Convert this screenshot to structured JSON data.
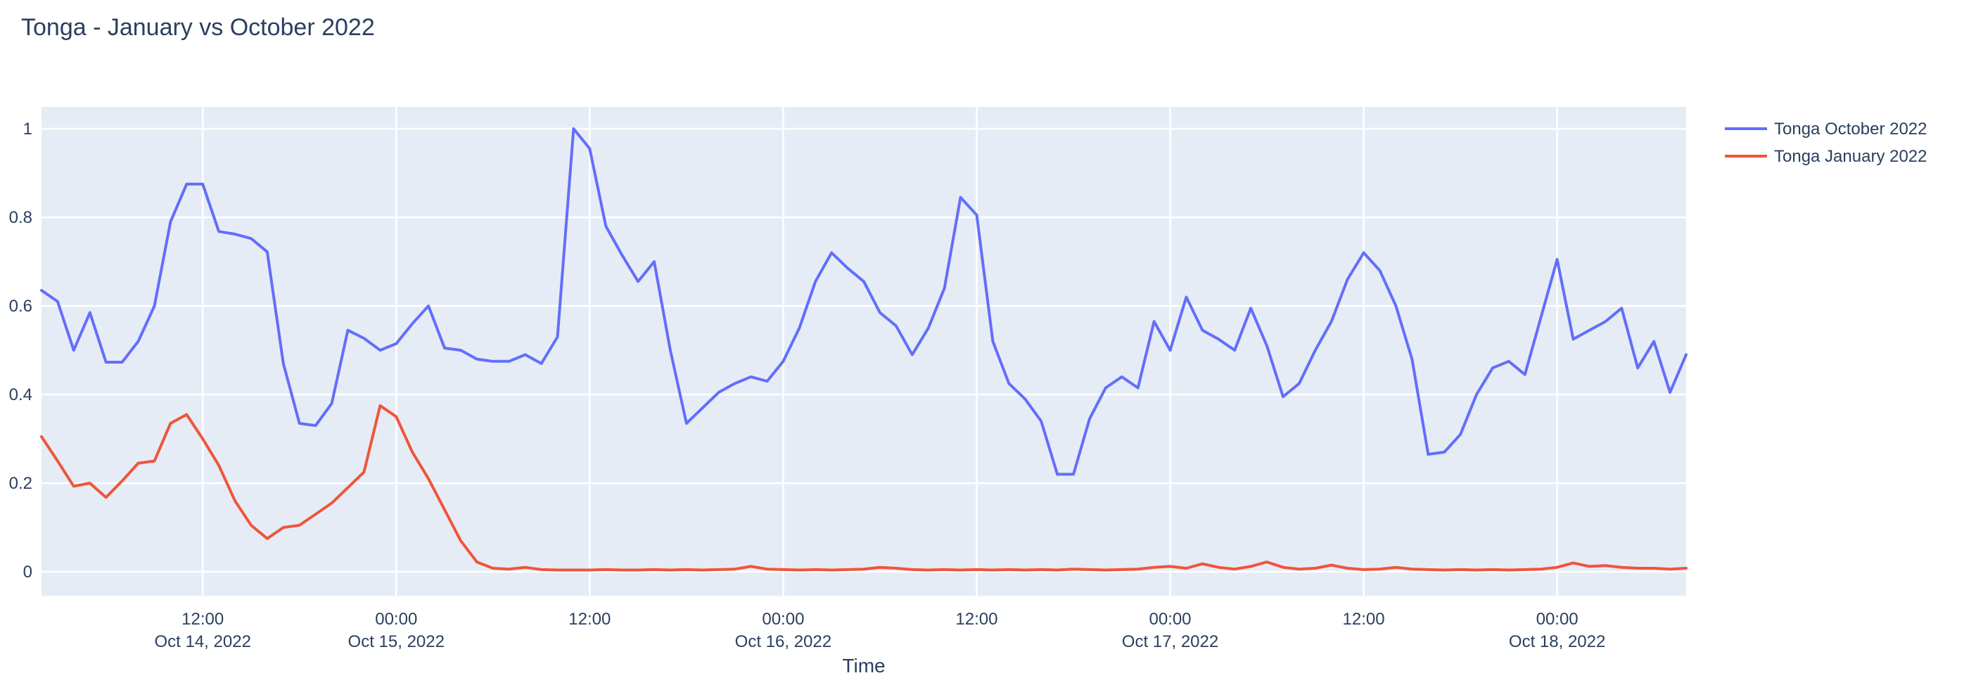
{
  "title": "Tonga - January vs October 2022",
  "colors": {
    "paper_background": "#ffffff",
    "plot_background": "#e5ecf6",
    "gridline": "#ffffff",
    "text": "#2a3f5f",
    "series_october": "#636efa",
    "series_january": "#ef553b"
  },
  "legend": {
    "items": [
      {
        "label": "Tonga October 2022",
        "color": "#636efa"
      },
      {
        "label": "Tonga January 2022",
        "color": "#ef553b"
      }
    ]
  },
  "chart_data": {
    "type": "line",
    "title": "Tonga - January vs October 2022",
    "xlabel": "Time",
    "ylabel": "",
    "ylim": [
      0,
      1
    ],
    "xlim_hours_since_oct14_midnight": [
      2,
      104
    ],
    "grid": true,
    "legend_position": "right-top-outside",
    "y_ticks": [
      0,
      0.2,
      0.4,
      0.6,
      0.8,
      1
    ],
    "y_tick_labels": [
      "0",
      "0.2",
      "0.4",
      "0.6",
      "0.8",
      "1"
    ],
    "x_ticks": [
      {
        "hour": 12,
        "time": "12:00",
        "date": "Oct 14, 2022"
      },
      {
        "hour": 24,
        "time": "00:00",
        "date": "Oct 15, 2022"
      },
      {
        "hour": 36,
        "time": "12:00",
        "date": ""
      },
      {
        "hour": 48,
        "time": "00:00",
        "date": "Oct 16, 2022"
      },
      {
        "hour": 60,
        "time": "12:00",
        "date": ""
      },
      {
        "hour": 72,
        "time": "00:00",
        "date": "Oct 17, 2022"
      },
      {
        "hour": 84,
        "time": "12:00",
        "date": ""
      },
      {
        "hour": 96,
        "time": "00:00",
        "date": "Oct 18, 2022"
      }
    ],
    "x_hours": [
      2,
      3,
      4,
      5,
      6,
      7,
      8,
      9,
      10,
      11,
      12,
      13,
      14,
      15,
      16,
      17,
      18,
      19,
      20,
      21,
      22,
      23,
      24,
      25,
      26,
      27,
      28,
      29,
      30,
      31,
      32,
      33,
      34,
      35,
      36,
      37,
      38,
      39,
      40,
      41,
      42,
      43,
      44,
      45,
      46,
      47,
      48,
      49,
      50,
      51,
      52,
      53,
      54,
      55,
      56,
      57,
      58,
      59,
      60,
      61,
      62,
      63,
      64,
      65,
      66,
      67,
      68,
      69,
      70,
      71,
      72,
      73,
      74,
      75,
      76,
      77,
      78,
      79,
      80,
      81,
      82,
      83,
      84,
      85,
      86,
      87,
      88,
      89,
      90,
      91,
      92,
      93,
      94,
      95,
      96,
      97,
      98,
      99,
      100,
      101,
      102,
      103,
      104
    ],
    "series": [
      {
        "name": "Tonga October 2022",
        "color": "#636efa",
        "values": [
          0.635,
          0.61,
          0.5,
          0.585,
          0.473,
          0.473,
          0.52,
          0.6,
          0.79,
          0.875,
          0.875,
          0.768,
          0.762,
          0.752,
          0.722,
          0.47,
          0.335,
          0.33,
          0.38,
          0.545,
          0.527,
          0.5,
          0.515,
          0.56,
          0.6,
          0.505,
          0.5,
          0.48,
          0.475,
          0.475,
          0.49,
          0.47,
          0.53,
          1.0,
          0.955,
          0.78,
          0.715,
          0.655,
          0.7,
          0.5,
          0.335,
          0.37,
          0.405,
          0.425,
          0.44,
          0.43,
          0.475,
          0.55,
          0.655,
          0.72,
          0.685,
          0.655,
          0.585,
          0.555,
          0.49,
          0.55,
          0.64,
          0.845,
          0.805,
          0.52,
          0.425,
          0.39,
          0.34,
          0.22,
          0.22,
          0.345,
          0.415,
          0.44,
          0.415,
          0.565,
          0.5,
          0.62,
          0.545,
          0.525,
          0.5,
          0.595,
          0.51,
          0.395,
          0.425,
          0.5,
          0.565,
          0.66,
          0.72,
          0.68,
          0.6,
          0.48,
          0.265,
          0.27,
          0.31,
          0.4,
          0.46,
          0.475,
          0.445,
          0.575,
          0.705,
          0.525,
          0.545,
          0.565,
          0.595,
          0.46,
          0.52,
          0.405,
          0.49
        ]
      },
      {
        "name": "Tonga January 2022",
        "color": "#ef553b",
        "values": [
          0.305,
          0.25,
          0.193,
          0.2,
          0.168,
          0.205,
          0.245,
          0.25,
          0.335,
          0.355,
          0.3,
          0.24,
          0.16,
          0.105,
          0.075,
          0.1,
          0.105,
          0.13,
          0.155,
          0.19,
          0.225,
          0.375,
          0.35,
          0.27,
          0.21,
          0.14,
          0.07,
          0.022,
          0.008,
          0.006,
          0.01,
          0.005,
          0.004,
          0.004,
          0.004,
          0.005,
          0.004,
          0.004,
          0.005,
          0.004,
          0.005,
          0.004,
          0.005,
          0.006,
          0.012,
          0.006,
          0.005,
          0.004,
          0.005,
          0.004,
          0.005,
          0.006,
          0.01,
          0.008,
          0.005,
          0.004,
          0.005,
          0.004,
          0.005,
          0.004,
          0.005,
          0.004,
          0.005,
          0.004,
          0.006,
          0.005,
          0.004,
          0.005,
          0.006,
          0.01,
          0.012,
          0.008,
          0.018,
          0.01,
          0.006,
          0.012,
          0.022,
          0.01,
          0.006,
          0.008,
          0.015,
          0.008,
          0.005,
          0.006,
          0.01,
          0.006,
          0.005,
          0.004,
          0.005,
          0.004,
          0.005,
          0.004,
          0.005,
          0.006,
          0.01,
          0.02,
          0.012,
          0.014,
          0.01,
          0.008,
          0.008,
          0.006,
          0.008
        ]
      }
    ]
  }
}
